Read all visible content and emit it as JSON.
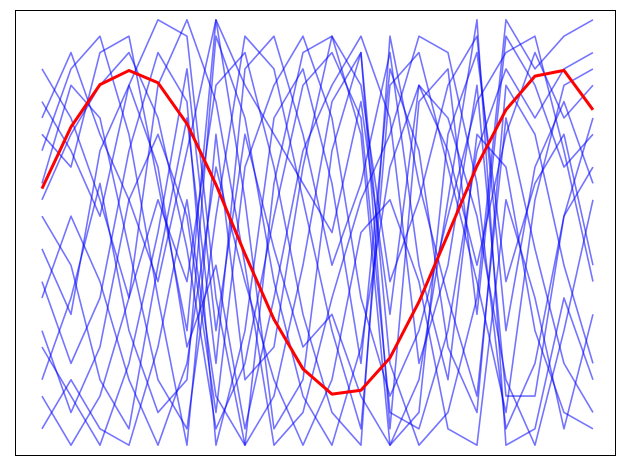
{
  "chart_data": {
    "type": "line",
    "x": [
      0,
      1,
      2,
      3,
      4,
      5,
      6,
      7,
      8,
      9,
      10,
      11,
      12,
      13,
      14,
      15,
      16,
      17,
      18,
      19
    ],
    "xlim": [
      -0.93,
      19.76
    ],
    "ylim": [
      -1.36,
      1.36
    ],
    "series": [
      {
        "color": "#0000ff",
        "values": [
          0.6,
          0.4,
          1.1,
          1.2,
          0.3,
          -0.6,
          1.3,
          0.2,
          -1.2,
          -0.9,
          0.5,
          1.1,
          -1.2,
          0.8,
          1.0,
          -0.5,
          1.2,
          0.9,
          0.4,
          0.6
        ]
      },
      {
        "color": "#0000ff",
        "values": [
          -1.2,
          -0.9,
          -1.2,
          -1.3,
          -0.7,
          0.2,
          -1.0,
          -1.3,
          0.3,
          1.1,
          1.2,
          0.6,
          -1.3,
          -0.9,
          0.2,
          1.3,
          -1.3,
          -1.2,
          -0.4,
          -0.9
        ]
      },
      {
        "color": "#0000ff",
        "values": [
          0.3,
          0.9,
          0.7,
          -0.1,
          -0.9,
          -1.2,
          0.1,
          1.2,
          1.0,
          0.2,
          -0.6,
          -1.2,
          0.9,
          1.1,
          0.4,
          -0.3,
          -1.1,
          0.2,
          0.9,
          1.0
        ]
      },
      {
        "color": "#0000ff",
        "values": [
          -0.3,
          -0.8,
          -0.4,
          0.5,
          1.1,
          0.8,
          -1.3,
          -0.6,
          0.7,
          1.0,
          0.3,
          -0.8,
          1.0,
          0.5,
          -0.7,
          -1.1,
          0.9,
          0.6,
          -0.2,
          -0.8
        ]
      },
      {
        "color": "#0000ff",
        "values": [
          0.8,
          0.5,
          0.1,
          0.9,
          1.3,
          1.2,
          -0.4,
          -1.3,
          -1.0,
          -0.2,
          0.8,
          1.1,
          -0.8,
          -1.3,
          -1.1,
          -0.4,
          1.3,
          1.0,
          1.2,
          1.3
        ]
      },
      {
        "color": "#0000ff",
        "values": [
          -0.9,
          -0.4,
          0.3,
          -0.6,
          -1.1,
          -0.9,
          1.2,
          0.7,
          -0.3,
          -1.0,
          -1.3,
          -0.7,
          0.4,
          0.9,
          0.7,
          0.1,
          -0.9,
          -1.3,
          -0.6,
          0.2
        ]
      },
      {
        "color": "#0000ff",
        "values": [
          0.1,
          -0.2,
          -0.9,
          -1.2,
          -0.2,
          0.7,
          -0.8,
          1.0,
          1.2,
          0.6,
          -0.2,
          0.3,
          1.1,
          -0.2,
          -0.9,
          0.6,
          0.4,
          -0.6,
          -1.1,
          -1.2
        ]
      },
      {
        "color": "#0000ff",
        "values": [
          0.5,
          1.0,
          1.2,
          0.6,
          -0.4,
          -1.3,
          0.6,
          -0.9,
          -0.7,
          0.4,
          1.2,
          0.9,
          -0.3,
          0.2,
          0.9,
          1.2,
          -0.6,
          0.4,
          0.8,
          0.3
        ]
      },
      {
        "color": "#0000ff",
        "values": [
          -0.6,
          -1.1,
          -0.7,
          0.2,
          0.6,
          0.1,
          -1.1,
          0.4,
          0.9,
          1.2,
          0.7,
          -0.4,
          -1.0,
          -0.6,
          0.1,
          0.8,
          1.1,
          1.2,
          0.5,
          -0.3
        ]
      },
      {
        "color": "#0000ff",
        "values": [
          1.0,
          0.7,
          0.2,
          -0.4,
          0.9,
          1.3,
          0.8,
          -0.2,
          -1.3,
          -1.1,
          -0.4,
          0.2,
          0.6,
          1.2,
          1.1,
          0.3,
          -1.2,
          -0.8,
          0.1,
          0.7
        ]
      },
      {
        "color": "#0000ff",
        "values": [
          -1.0,
          -1.3,
          -1.0,
          -0.4,
          0.2,
          -0.3,
          0.9,
          1.1,
          0.4,
          -0.5,
          -1.1,
          -1.3,
          1.2,
          0.3,
          -0.4,
          -1.0,
          0.7,
          -0.1,
          -0.8,
          -1.1
        ]
      },
      {
        "color": "#0000ff",
        "values": [
          0.2,
          0.6,
          0.9,
          1.1,
          0.7,
          -0.1,
          -1.2,
          -0.8,
          0.1,
          0.9,
          1.1,
          0.7,
          -1.1,
          -1.2,
          -0.6,
          0.5,
          1.0,
          0.7,
          1.0,
          1.1
        ]
      },
      {
        "color": "#0000ff",
        "values": [
          -0.4,
          0.1,
          -0.3,
          -0.9,
          -1.3,
          -0.8,
          0.4,
          -0.3,
          -0.9,
          -1.3,
          -0.9,
          0.0,
          0.2,
          -0.3,
          -1.2,
          -1.3,
          0.2,
          -0.4,
          -1.2,
          -0.5
        ]
      },
      {
        "color": "#0000ff",
        "values": [
          0.7,
          1.1,
          0.6,
          0.2,
          -0.3,
          0.5,
          1.3,
          0.9,
          0.6,
          0.3,
          0.0,
          0.8,
          -0.5,
          0.9,
          0.5,
          -0.2,
          0.6,
          1.1,
          0.7,
          0.9
        ]
      },
      {
        "color": "#0000ff",
        "values": [
          -0.1,
          -0.5,
          0.5,
          0.9,
          0.4,
          -0.7,
          -0.2,
          -1.2,
          -0.4,
          0.5,
          0.9,
          1.2,
          0.7,
          -0.8,
          -0.2,
          0.9,
          -1.0,
          -1.0,
          0.1,
          0.4
        ]
      },
      {
        "color": "#0000ff",
        "values": [
          -0.7,
          -1.0,
          -1.3,
          -0.8,
          0.0,
          1.0,
          -0.6,
          0.6,
          -0.1,
          -0.7,
          -0.5,
          -1.0,
          -1.3,
          -1.1,
          0.6,
          1.1,
          -0.3,
          0.3,
          0.6,
          -0.2
        ]
      },
      {
        "color": "#ff0000",
        "width": 3,
        "values": [
          0.268,
          0.645,
          0.904,
          0.99,
          0.915,
          0.665,
          0.293,
          -0.131,
          -0.531,
          -0.834,
          -0.988,
          -0.964,
          -0.766,
          -0.424,
          -0.011,
          0.407,
          0.75,
          0.956,
          0.991,
          0.75
        ]
      }
    ]
  }
}
